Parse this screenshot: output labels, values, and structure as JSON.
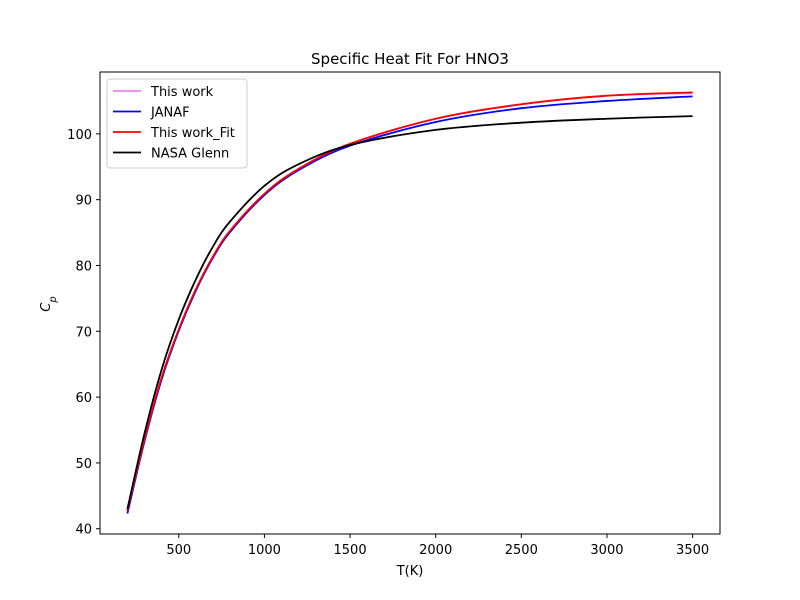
{
  "chart_data": {
    "type": "line",
    "title": "Specific Heat Fit For HNO3",
    "xlabel": "T(K)",
    "ylabel": "C",
    "ylabel_sub": "p",
    "xlim": [
      40,
      3660
    ],
    "ylim": [
      39.2,
      109.4
    ],
    "x_ticks": [
      500,
      1000,
      1500,
      2000,
      2500,
      3000,
      3500
    ],
    "y_ticks": [
      40,
      50,
      60,
      70,
      80,
      90,
      100
    ],
    "legend_position": "upper-left",
    "grid": false,
    "series": [
      {
        "name": "This work",
        "color": "#ee82ee",
        "x": [
          200,
          300,
          400,
          500,
          600,
          700,
          800,
          1000,
          1200,
          1500,
          2000,
          2500,
          3000,
          3500
        ],
        "y": [
          42.6,
          53.5,
          62.9,
          70.2,
          76.3,
          81.3,
          85.2,
          90.8,
          94.6,
          98.4,
          102.3,
          104.5,
          105.8,
          106.2
        ]
      },
      {
        "name": "JANAF",
        "color": "#0000ff",
        "x": [
          200,
          300,
          400,
          500,
          600,
          700,
          800,
          1000,
          1200,
          1500,
          2000,
          2500,
          3000,
          3500
        ],
        "y": [
          42.3,
          53.3,
          62.7,
          70.1,
          76.2,
          81.2,
          85.1,
          90.7,
          94.5,
          98.2,
          101.8,
          103.9,
          105.0,
          105.7
        ]
      },
      {
        "name": "This work_Fit",
        "color": "#ff0000",
        "x": [
          200,
          300,
          400,
          500,
          600,
          700,
          800,
          1000,
          1200,
          1500,
          2000,
          2500,
          3000,
          3500
        ],
        "y": [
          42.7,
          53.6,
          63.0,
          70.3,
          76.4,
          81.4,
          85.3,
          90.9,
          94.7,
          98.5,
          102.3,
          104.5,
          105.8,
          106.3
        ]
      },
      {
        "name": "NASA Glenn",
        "color": "#000000",
        "x": [
          200,
          300,
          400,
          500,
          600,
          700,
          800,
          1000,
          1200,
          1500,
          2000,
          2500,
          3000,
          3500
        ],
        "y": [
          43.0,
          54.5,
          64.2,
          71.8,
          77.9,
          82.9,
          86.7,
          92.1,
          95.4,
          98.3,
          100.6,
          101.7,
          102.3,
          102.7
        ]
      }
    ]
  }
}
